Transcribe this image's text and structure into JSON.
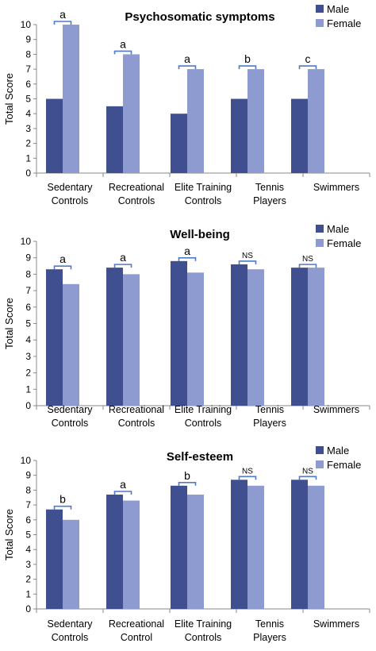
{
  "colors": {
    "male": "#3f4f8f",
    "female": "#8e9bd0",
    "axis": "#888888",
    "bracket": "#4f79c9"
  },
  "chart_data": [
    {
      "type": "bar",
      "title": "Psychosomatic symptoms",
      "ylabel": "Total Score",
      "ylim": [
        0,
        10
      ],
      "yticks": [
        "0",
        "1",
        "2",
        "3",
        "4",
        "5",
        "6",
        "7",
        "8",
        "9",
        "10"
      ],
      "categories": [
        [
          "Sedentary",
          "Controls"
        ],
        [
          "Recreational",
          "Controls"
        ],
        [
          "Elite Training",
          "Controls"
        ],
        [
          "Tennis",
          "Players"
        ],
        [
          "Swimmers"
        ]
      ],
      "series": [
        {
          "name": "Male",
          "values": [
            5,
            4.5,
            4,
            5,
            5
          ]
        },
        {
          "name": "Female",
          "values": [
            10,
            8,
            7,
            7,
            7
          ]
        }
      ],
      "annotations": [
        "a",
        "a",
        "a",
        "b",
        "c"
      ],
      "legend": "top-right",
      "grid": false
    },
    {
      "type": "bar",
      "title": "Well-being",
      "ylabel": "Total Score",
      "ylim": [
        0,
        10
      ],
      "yticks": [
        "0",
        "1",
        "2",
        "3",
        "4",
        "5",
        "6",
        "7",
        "8",
        "9",
        "10"
      ],
      "categories": [
        [
          "Sedentary",
          "Controls"
        ],
        [
          "Recreational",
          "Controls"
        ],
        [
          "Elite Training",
          "Controls"
        ],
        [
          "Tennis",
          "Players"
        ],
        [
          "Swimmers"
        ]
      ],
      "series": [
        {
          "name": "Male",
          "values": [
            8.3,
            8.4,
            8.8,
            8.6,
            8.4
          ]
        },
        {
          "name": "Female",
          "values": [
            7.4,
            8.0,
            8.1,
            8.3,
            8.4
          ]
        }
      ],
      "annotations": [
        "a",
        "a",
        "a",
        "NS",
        "NS"
      ],
      "legend": "top-right",
      "grid": false
    },
    {
      "type": "bar",
      "title": "Self-esteem",
      "ylabel": "Total Score",
      "ylim": [
        0,
        10
      ],
      "yticks": [
        "0",
        "1",
        "2",
        "3",
        "4",
        "5",
        "6",
        "7",
        "8",
        "9",
        "10"
      ],
      "categories": [
        [
          "Sedentary",
          "Controls"
        ],
        [
          "Recreational",
          "Control"
        ],
        [
          "Elite Training",
          "Controls"
        ],
        [
          "Tennis",
          "Players"
        ],
        [
          "Swimmers"
        ]
      ],
      "series": [
        {
          "name": "Male",
          "values": [
            6.7,
            7.7,
            8.3,
            8.7,
            8.7
          ]
        },
        {
          "name": "Female",
          "values": [
            6.0,
            7.3,
            7.7,
            8.3,
            8.3
          ]
        }
      ],
      "annotations": [
        "b",
        "a",
        "b",
        "NS",
        "NS"
      ],
      "legend": "top-right",
      "grid": false
    }
  ]
}
